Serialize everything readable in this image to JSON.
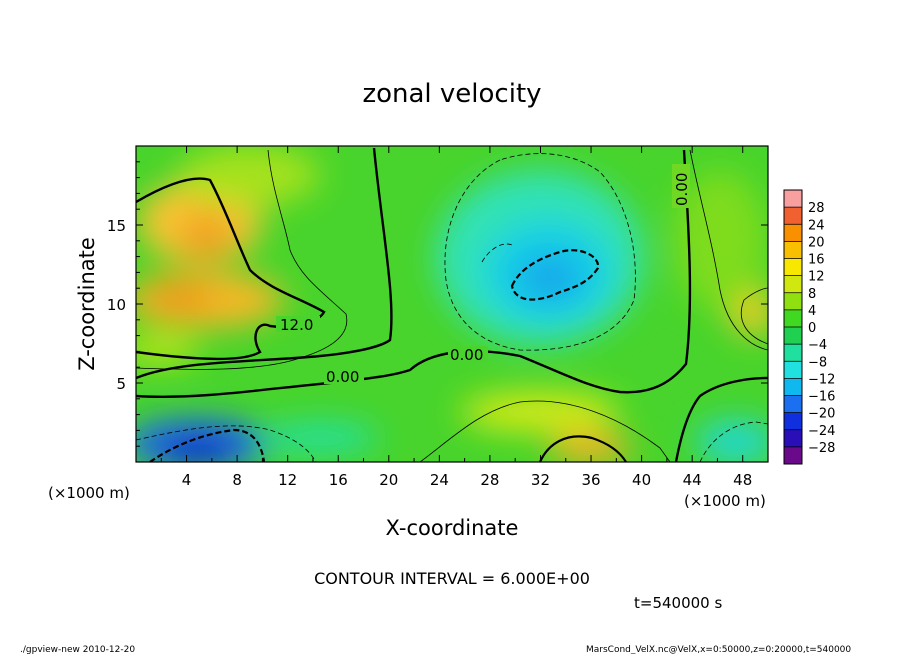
{
  "chart_data": {
    "type": "heatmap",
    "title": "zonal velocity",
    "xlabel": "X-coordinate",
    "ylabel": "Z-coordinate",
    "x_unit": "(×1000 m)",
    "y_unit": "(×1000 m)",
    "xlim": [
      0,
      50
    ],
    "ylim": [
      0,
      20
    ],
    "x_ticks": [
      4,
      8,
      12,
      16,
      20,
      24,
      28,
      32,
      36,
      40,
      44,
      48
    ],
    "y_ticks": [
      5,
      10,
      15
    ],
    "contour_interval_text": "CONTOUR INTERVAL = 6.000E+00",
    "contour_labels": [
      "12.0",
      "0.00",
      "0.00",
      "0.00"
    ],
    "time_label": "t=540000 s",
    "colorbar": {
      "labels": [
        "28",
        "24",
        "20",
        "16",
        "12",
        "8",
        "4",
        "0",
        "−4",
        "−8",
        "−12",
        "−16",
        "−20",
        "−24",
        "−28"
      ],
      "colors": [
        "#6a0a8a",
        "#2a0fb8",
        "#1030e0",
        "#1a70f0",
        "#10b8f0",
        "#20e0e0",
        "#20e0a0",
        "#20d050",
        "#40d820",
        "#90e010",
        "#d0e810",
        "#f8e800",
        "#f8c000",
        "#f89000",
        "#f06030",
        "#f8a0a0"
      ]
    },
    "field_samples": {
      "x": [
        2,
        6,
        10,
        14,
        18,
        22,
        26,
        30,
        34,
        38,
        42,
        46,
        50
      ],
      "z": [
        1,
        4,
        7,
        10,
        13,
        16,
        19
      ],
      "u": [
        [
          -16,
          -22,
          -10,
          -4,
          -2,
          0,
          2,
          6,
          10,
          4,
          -2,
          -6,
          -2
        ],
        [
          -2,
          0,
          0,
          -2,
          0,
          0,
          2,
          6,
          8,
          2,
          0,
          0,
          2
        ],
        [
          6,
          4,
          6,
          0,
          0,
          0,
          -2,
          -4,
          -4,
          -2,
          0,
          2,
          4
        ],
        [
          14,
          16,
          14,
          6,
          0,
          0,
          -4,
          -8,
          -10,
          -4,
          0,
          2,
          6
        ],
        [
          14,
          16,
          10,
          4,
          2,
          0,
          -4,
          -10,
          -12,
          -6,
          0,
          2,
          2
        ],
        [
          12,
          14,
          8,
          4,
          2,
          0,
          -2,
          -6,
          -8,
          -4,
          0,
          2,
          2
        ],
        [
          6,
          8,
          6,
          4,
          2,
          0,
          -2,
          -4,
          -4,
          -2,
          0,
          2,
          4
        ]
      ]
    }
  },
  "footer": {
    "left": "./gpview-new  2010-12-20",
    "right": "MarsCond_VelX.nc@VelX,x=0:50000,z=0:20000,t=540000"
  }
}
